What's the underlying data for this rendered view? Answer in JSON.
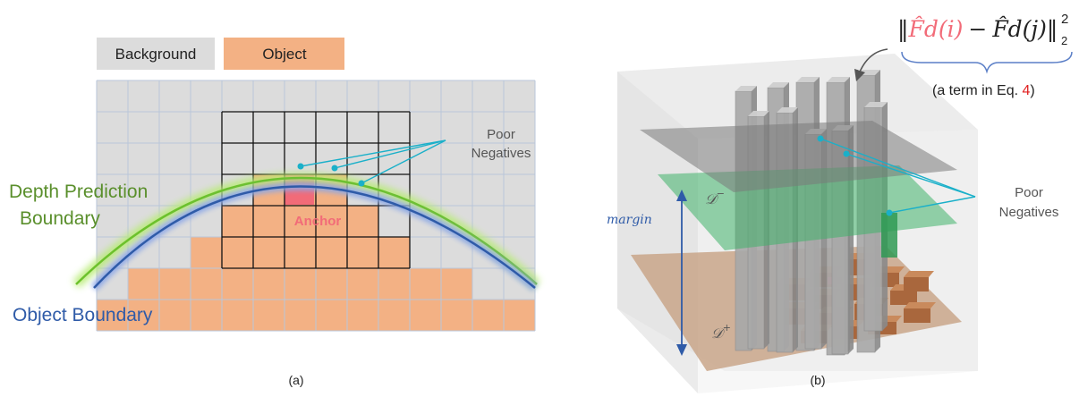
{
  "panel_a": {
    "legend": {
      "background": "Background",
      "object": "Object"
    },
    "poor_negatives": [
      "Poor",
      "Negatives"
    ],
    "anchor": "Anchor",
    "depth_boundary": [
      "Depth Prediction",
      "Boundary"
    ],
    "object_boundary": "Object Boundary",
    "caption": "(a)",
    "colors": {
      "background": "#dcdcdc",
      "object": "#f3b184",
      "grid": "#b8c4d8",
      "anchor": "#f26b78",
      "depth": "#7fd03a",
      "object_line": "#2f5ba8",
      "pointer": "#1ab0c9"
    }
  },
  "panel_b": {
    "formula": {
      "term_i": "F̂d(i)",
      "minus": "−",
      "term_j": "F̂d(j)",
      "sub": "2",
      "sup": "2"
    },
    "formula_note_prefix": "(a term in Eq. ",
    "formula_note_ref": "4",
    "formula_note_suffix": ")",
    "margin": "margin",
    "d_minus": "𝒟",
    "d_minus_sup": "−",
    "d_plus": "𝒟",
    "d_plus_sup": "+",
    "poor_negatives": [
      "Poor",
      "Negatives"
    ],
    "caption": "(b)"
  }
}
